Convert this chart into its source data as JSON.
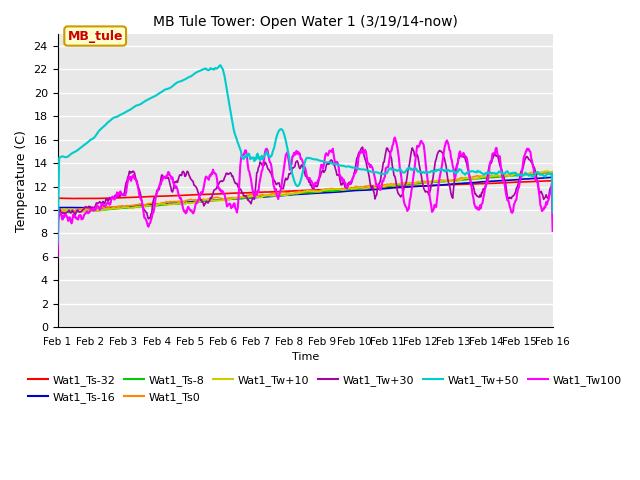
{
  "title": "MB Tule Tower: Open Water 1 (3/19/14-now)",
  "xlabel": "Time",
  "ylabel": "Temperature (C)",
  "ylim": [
    0,
    25
  ],
  "yticks": [
    0,
    2,
    4,
    6,
    8,
    10,
    12,
    14,
    16,
    18,
    20,
    22,
    24
  ],
  "xlim": [
    0,
    15
  ],
  "xtick_labels": [
    "Feb 1",
    "Feb 2",
    "Feb 3",
    "Feb 4",
    "Feb 5",
    "Feb 6",
    "Feb 7",
    "Feb 8",
    "Feb 9",
    "Feb 10",
    "Feb 11",
    "Feb 12",
    "Feb 13",
    "Feb 14",
    "Feb 15",
    "Feb 16"
  ],
  "bg_color": "#e8e8e8",
  "series": {
    "Wat1_Ts-32": {
      "color": "#ff0000",
      "lw": 1.2
    },
    "Wat1_Ts-16": {
      "color": "#0000cc",
      "lw": 1.2
    },
    "Wat1_Ts-8": {
      "color": "#00cc00",
      "lw": 1.2
    },
    "Wat1_Ts0": {
      "color": "#ff8800",
      "lw": 1.2
    },
    "Wat1_Tw+10": {
      "color": "#cccc00",
      "lw": 1.2
    },
    "Wat1_Tw+30": {
      "color": "#aa00aa",
      "lw": 1.2
    },
    "Wat1_Tw+50": {
      "color": "#00cccc",
      "lw": 1.5
    },
    "Wat1_Tw100": {
      "color": "#ff00ff",
      "lw": 1.5
    }
  },
  "legend_label": "MB_tule",
  "legend_color": "#cc0000",
  "legend_bg": "#ffffcc",
  "legend_edge": "#cc9900"
}
